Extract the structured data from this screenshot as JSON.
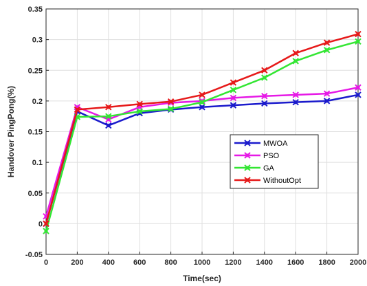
{
  "chart_data": {
    "type": "line",
    "xlabel": "Time(sec)",
    "ylabel": "Handover PingPong(%)",
    "xlim": [
      0,
      2000
    ],
    "ylim": [
      -0.05,
      0.35
    ],
    "x": [
      0,
      200,
      400,
      600,
      800,
      1000,
      1200,
      1400,
      1600,
      1800,
      2000
    ],
    "x_ticks": [
      "0",
      "200",
      "400",
      "600",
      "800",
      "1000",
      "1200",
      "1400",
      "1600",
      "1800",
      "2000"
    ],
    "y_ticks": [
      {
        "value": -0.05,
        "label": "-0.05"
      },
      {
        "value": 0,
        "label": "0"
      },
      {
        "value": 0.05,
        "label": "0.05"
      },
      {
        "value": 0.1,
        "label": "0.1"
      },
      {
        "value": 0.15,
        "label": "0.15"
      },
      {
        "value": 0.2,
        "label": "0.2"
      },
      {
        "value": 0.25,
        "label": "0.25"
      },
      {
        "value": 0.3,
        "label": "0.3"
      },
      {
        "value": 0.35,
        "label": "0.35"
      }
    ],
    "grid": true,
    "legend_position": "right-middle",
    "series": [
      {
        "name": "MWOA",
        "color": "#1a1acc",
        "values": [
          0.0,
          0.183,
          0.16,
          0.18,
          0.186,
          0.19,
          0.193,
          0.196,
          0.198,
          0.2,
          0.21
        ]
      },
      {
        "name": "PSO",
        "color": "#e619e6",
        "values": [
          0.012,
          0.19,
          0.17,
          0.19,
          0.197,
          0.2,
          0.205,
          0.208,
          0.21,
          0.212,
          0.222
        ]
      },
      {
        "name": "GA",
        "color": "#33e633",
        "values": [
          -0.012,
          0.174,
          0.175,
          0.183,
          0.187,
          0.198,
          0.218,
          0.238,
          0.265,
          0.283,
          0.297
        ]
      },
      {
        "name": "WithoutOpt",
        "color": "#e61919",
        "values": [
          0.0,
          0.186,
          0.19,
          0.195,
          0.199,
          0.21,
          0.23,
          0.25,
          0.278,
          0.295,
          0.309
        ]
      }
    ]
  }
}
